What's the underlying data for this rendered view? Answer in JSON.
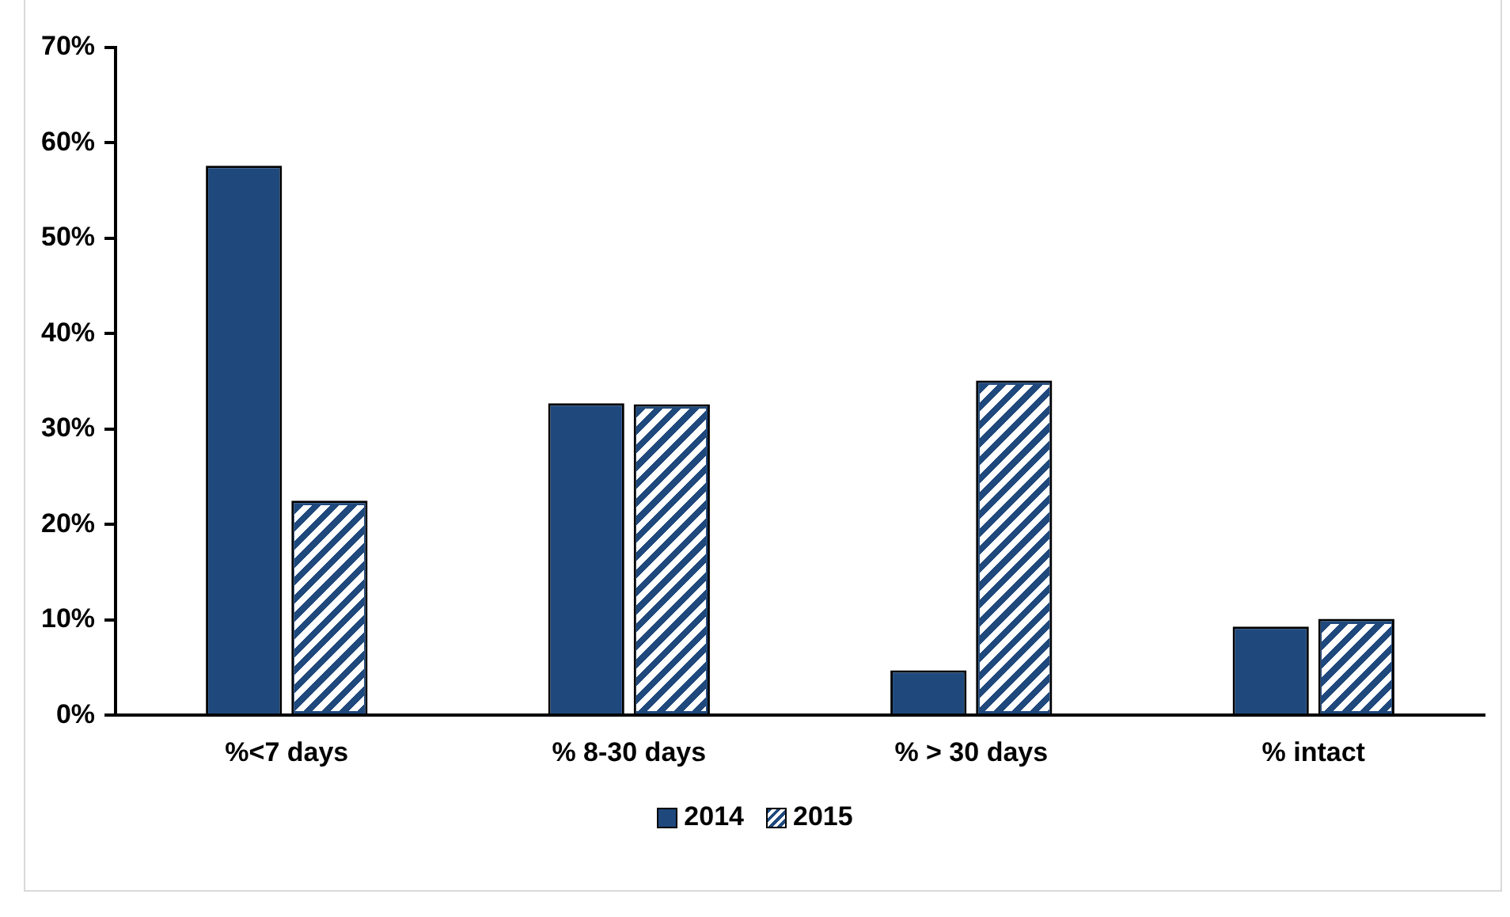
{
  "chart_data": {
    "type": "bar",
    "categories": [
      "%<7 days",
      "% 8-30 days",
      "% > 30 days",
      "% intact"
    ],
    "series": [
      {
        "name": "2014",
        "color": "#1f497d",
        "values": [
          57.6,
          32.7,
          4.7,
          9.3
        ]
      },
      {
        "name": "2015",
        "color": "#1f497d",
        "values": [
          22.5,
          32.6,
          35.1,
          10.1
        ]
      }
    ],
    "ylim": [
      0,
      70
    ],
    "yticks": [
      {
        "value": 0,
        "label": "0%"
      },
      {
        "value": 10,
        "label": "10%"
      },
      {
        "value": 20,
        "label": "20%"
      },
      {
        "value": 30,
        "label": "30%"
      },
      {
        "value": 40,
        "label": "40%"
      },
      {
        "value": 50,
        "label": "50%"
      },
      {
        "value": 60,
        "label": "60%"
      },
      {
        "value": 70,
        "label": "70%"
      }
    ],
    "grid": false,
    "legend": "bottom"
  }
}
